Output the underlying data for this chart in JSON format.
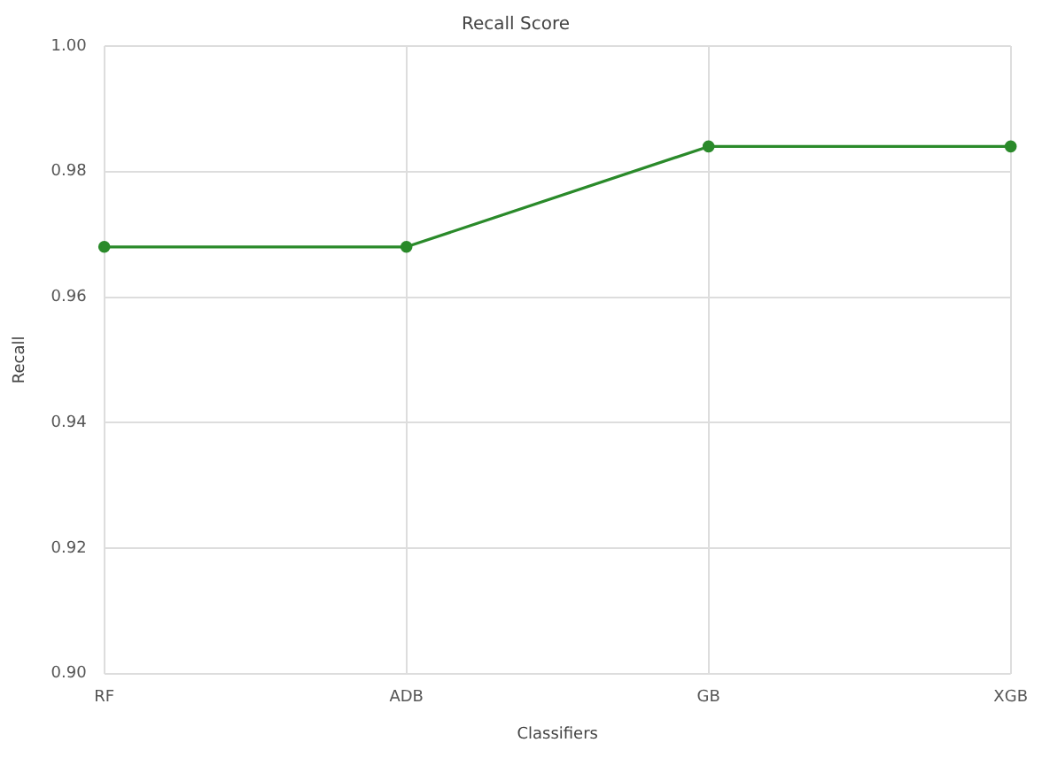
{
  "chart_data": {
    "type": "line",
    "title": "Recall Score",
    "xlabel": "Classifiers",
    "ylabel": "Recall",
    "categories": [
      "RF",
      "ADB",
      "GB",
      "XGB"
    ],
    "series": [
      {
        "color": "#2a8a2a",
        "values": [
          0.968,
          0.968,
          0.984,
          0.984
        ]
      }
    ],
    "ylim": [
      0.9,
      1.0
    ],
    "yticks": [
      {
        "value": 0.9,
        "label": "0.90"
      },
      {
        "value": 0.92,
        "label": "0.92"
      },
      {
        "value": 0.94,
        "label": "0.94"
      },
      {
        "value": 0.96,
        "label": "0.96"
      },
      {
        "value": 0.98,
        "label": "0.98"
      },
      {
        "value": 1.0,
        "label": "1.00"
      }
    ],
    "grid": true,
    "legend": false,
    "marker": "circle",
    "line_style": "solid"
  }
}
